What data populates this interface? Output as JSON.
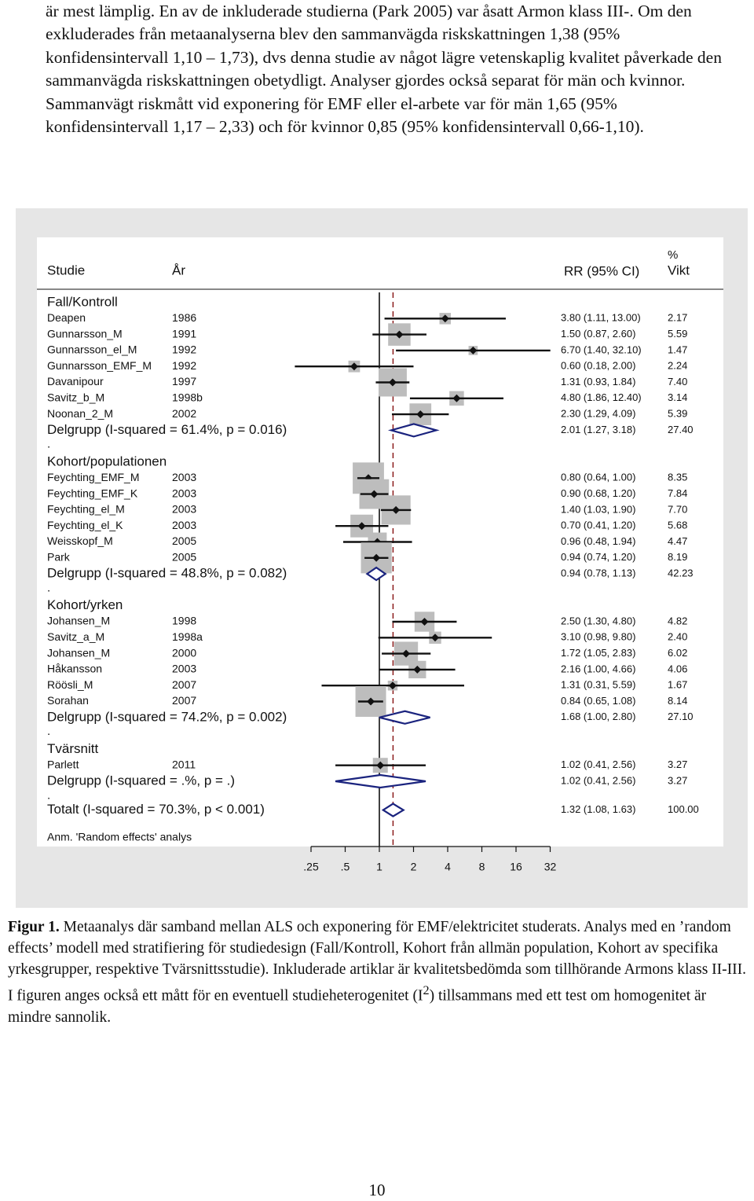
{
  "intro_paragraph": "är mest lämplig. En av de inkluderade studierna (Park 2005) var åsatt Armon klass III-. Om den exkluderades från metaanalyserna blev den sammanvägda riskskattningen 1,38 (95% konfidensintervall 1,10 – 1,73), dvs denna studie av något lägre vetenskaplig kvalitet påverkade den sammanvägda riskskattningen obetydligt. Analyser gjordes också separat för män och kvinnor. Sammanvägt riskmått vid exponering för EMF eller el-arbete var för män 1,65 (95% konfidensintervall 1,17 – 2,33) och för kvinnor 0,85 (95% konfidensintervall 0,66-1,10).",
  "figure": {
    "header": {
      "study": "Studie",
      "year": "År",
      "rr": "RR (95% CI)",
      "weight_pct": "%",
      "weight": "Vikt"
    },
    "note": "Anm. 'Random effects' analys",
    "x_ticks": [
      0.25,
      0.5,
      1,
      2,
      4,
      8,
      16,
      32
    ],
    "x_tick_labels": [
      ".25",
      ".5",
      "1",
      "2",
      "4",
      "8",
      "16",
      "32"
    ],
    "null_value": 1,
    "overall_dashed_value": 1.32,
    "overall_label": "Totalt  (I-squared = 70.3%, p < 0.001)",
    "overall_ci_text": "1.32 (1.08, 1.63)",
    "overall_weight_text": "100.00",
    "overall": {
      "rr": 1.32,
      "lo": 1.08,
      "hi": 1.63
    },
    "separator": "."
  },
  "chart_data": {
    "type": "forest",
    "x_scale": "log2",
    "xlim": [
      0.25,
      32
    ],
    "groups": [
      {
        "name": "Fall/Kontroll",
        "studies": [
          {
            "study": "Deapen",
            "year": "1986",
            "rr": 3.8,
            "lo": 1.11,
            "hi": 13.0,
            "ci_text": "3.80 (1.11, 13.00)",
            "weight": 2.17,
            "weight_text": "2.17"
          },
          {
            "study": "Gunnarsson_M",
            "year": "1991",
            "rr": 1.5,
            "lo": 0.87,
            "hi": 2.6,
            "ci_text": "1.50 (0.87, 2.60)",
            "weight": 5.59,
            "weight_text": "5.59"
          },
          {
            "study": "Gunnarsson_el_M",
            "year": "1992",
            "rr": 6.7,
            "lo": 1.4,
            "hi": 32.1,
            "ci_text": "6.70 (1.40, 32.10)",
            "weight": 1.47,
            "weight_text": "1.47"
          },
          {
            "study": "Gunnarsson_EMF_M",
            "year": "1992",
            "rr": 0.6,
            "lo": 0.18,
            "hi": 2.0,
            "ci_text": "0.60 (0.18, 2.00)",
            "weight": 2.24,
            "weight_text": "2.24"
          },
          {
            "study": "Davanipour",
            "year": "1997",
            "rr": 1.31,
            "lo": 0.93,
            "hi": 1.84,
            "ci_text": "1.31 (0.93, 1.84)",
            "weight": 7.4,
            "weight_text": "7.40"
          },
          {
            "study": "Savitz_b_M",
            "year": "1998b",
            "rr": 4.8,
            "lo": 1.86,
            "hi": 12.4,
            "ci_text": "4.80 (1.86, 12.40)",
            "weight": 3.14,
            "weight_text": "3.14"
          },
          {
            "study": "Noonan_2_M",
            "year": "2002",
            "rr": 2.3,
            "lo": 1.29,
            "hi": 4.09,
            "ci_text": "2.30 (1.29, 4.09)",
            "weight": 5.39,
            "weight_text": "5.39"
          }
        ],
        "subtotal": {
          "label": "Delgrupp  (I-squared = 61.4%, p = 0.016)",
          "rr": 2.01,
          "lo": 1.27,
          "hi": 3.18,
          "ci_text": "2.01 (1.27, 3.18)",
          "weight_text": "27.40"
        }
      },
      {
        "name": "Kohort/populationen",
        "studies": [
          {
            "study": "Feychting_EMF_M",
            "year": "2003",
            "rr": 0.8,
            "lo": 0.64,
            "hi": 1.0,
            "ci_text": "0.80 (0.64, 1.00)",
            "weight": 8.35,
            "weight_text": "8.35"
          },
          {
            "study": "Feychting_EMF_K",
            "year": "2003",
            "rr": 0.9,
            "lo": 0.68,
            "hi": 1.2,
            "ci_text": "0.90 (0.68, 1.20)",
            "weight": 7.84,
            "weight_text": "7.84"
          },
          {
            "study": "Feychting_el_M",
            "year": "2003",
            "rr": 1.4,
            "lo": 1.03,
            "hi": 1.9,
            "ci_text": "1.40 (1.03, 1.90)",
            "weight": 7.7,
            "weight_text": "7.70"
          },
          {
            "study": "Feychting_el_K",
            "year": "2003",
            "rr": 0.7,
            "lo": 0.41,
            "hi": 1.2,
            "ci_text": "0.70 (0.41, 1.20)",
            "weight": 5.68,
            "weight_text": "5.68"
          },
          {
            "study": "Weisskopf_M",
            "year": "2005",
            "rr": 0.96,
            "lo": 0.48,
            "hi": 1.94,
            "ci_text": "0.96 (0.48, 1.94)",
            "weight": 4.47,
            "weight_text": "4.47"
          },
          {
            "study": "Park",
            "year": "2005",
            "rr": 0.94,
            "lo": 0.74,
            "hi": 1.2,
            "ci_text": "0.94 (0.74, 1.20)",
            "weight": 8.19,
            "weight_text": "8.19"
          }
        ],
        "subtotal": {
          "label": "Delgrupp  (I-squared = 48.8%, p = 0.082)",
          "rr": 0.94,
          "lo": 0.78,
          "hi": 1.13,
          "ci_text": "0.94 (0.78, 1.13)",
          "weight_text": "42.23"
        }
      },
      {
        "name": "Kohort/yrken",
        "studies": [
          {
            "study": "Johansen_M",
            "year": "1998",
            "rr": 2.5,
            "lo": 1.3,
            "hi": 4.8,
            "ci_text": "2.50 (1.30, 4.80)",
            "weight": 4.82,
            "weight_text": "4.82"
          },
          {
            "study": "Savitz_a_M",
            "year": "1998a",
            "rr": 3.1,
            "lo": 0.98,
            "hi": 9.8,
            "ci_text": "3.10 (0.98, 9.80)",
            "weight": 2.4,
            "weight_text": "2.40"
          },
          {
            "study": "Johansen_M",
            "year": "2000",
            "rr": 1.72,
            "lo": 1.05,
            "hi": 2.83,
            "ci_text": "1.72 (1.05, 2.83)",
            "weight": 6.02,
            "weight_text": "6.02"
          },
          {
            "study": "Håkansson",
            "year": "2003",
            "rr": 2.16,
            "lo": 1.0,
            "hi": 4.66,
            "ci_text": "2.16 (1.00, 4.66)",
            "weight": 4.06,
            "weight_text": "4.06"
          },
          {
            "study": "Röösli_M",
            "year": "2007",
            "rr": 1.31,
            "lo": 0.31,
            "hi": 5.59,
            "ci_text": "1.31 (0.31, 5.59)",
            "weight": 1.67,
            "weight_text": "1.67"
          },
          {
            "study": "Sorahan",
            "year": "2007",
            "rr": 0.84,
            "lo": 0.65,
            "hi": 1.08,
            "ci_text": "0.84 (0.65, 1.08)",
            "weight": 8.14,
            "weight_text": "8.14"
          }
        ],
        "subtotal": {
          "label": "Delgrupp  (I-squared = 74.2%, p = 0.002)",
          "rr": 1.68,
          "lo": 1.0,
          "hi": 2.8,
          "ci_text": "1.68 (1.00, 2.80)",
          "weight_text": "27.10"
        }
      },
      {
        "name": "Tvärsnitt",
        "studies": [
          {
            "study": "Parlett",
            "year": "2011",
            "rr": 1.02,
            "lo": 0.41,
            "hi": 2.56,
            "ci_text": "1.02 (0.41, 2.56)",
            "weight": 3.27,
            "weight_text": "3.27"
          }
        ],
        "subtotal": {
          "label": "Delgrupp  (I-squared = .%, p = .)",
          "rr": 1.02,
          "lo": 0.41,
          "hi": 2.56,
          "ci_text": "1.02 (0.41, 2.56)",
          "weight_text": "3.27"
        }
      }
    ]
  },
  "caption": {
    "lead": "Figur 1.",
    "text": " Metaanalys där samband mellan ALS och exponering för EMF/elektricitet studerats. Analys med en ’random effects’ modell med stratifiering för studiedesign (Fall/Kontroll, Kohort från allmän population, Kohort av specifika yrkesgrupper, respektive Tvärsnittsstudie). Inkluderade artiklar är kvalitetsbedömda som tillhörande Armons klass II-III. I figuren anges också ett mått för en eventuell studieheterogenitet (I",
    "superscript": "2",
    "text_after": ") tillsammans med ett test om homogenitet är mindre sannolik."
  },
  "page_number": "10"
}
